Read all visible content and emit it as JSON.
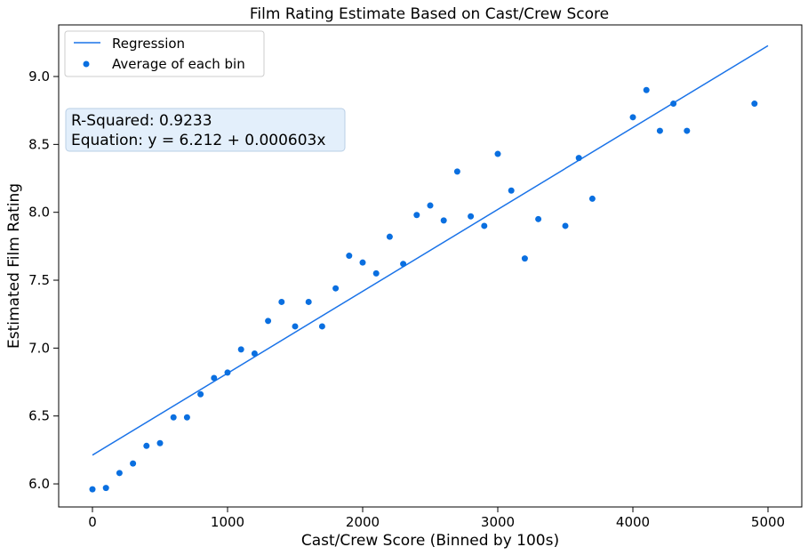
{
  "chart_data": {
    "type": "scatter",
    "title": "Film Rating Estimate Based on Cast/Crew Score",
    "xlabel": "Cast/Crew Score (Binned by 100s)",
    "ylabel": "Estimated Film Rating",
    "xlim": [
      -250,
      5250
    ],
    "ylim": [
      5.83,
      9.38
    ],
    "x_ticks": [
      0,
      1000,
      2000,
      3000,
      4000,
      5000
    ],
    "x_tick_labels": [
      "0",
      "1000",
      "2000",
      "3000",
      "4000",
      "5000"
    ],
    "y_ticks": [
      6.0,
      6.5,
      7.0,
      7.5,
      8.0,
      8.5,
      9.0
    ],
    "y_tick_labels": [
      "6.0",
      "6.5",
      "7.0",
      "7.5",
      "8.0",
      "8.5",
      "9.0"
    ],
    "grid": false,
    "legend_position": "top-left",
    "colors": {
      "series": "#0a6fe0",
      "regression": "#1a73e8",
      "annotation_bg": "#e3effb",
      "annotation_border": "#b9cfe6"
    },
    "series": [
      {
        "name": "Average of each bin",
        "kind": "scatter",
        "x": [
          0,
          100,
          200,
          300,
          400,
          500,
          600,
          700,
          800,
          900,
          1000,
          1100,
          1200,
          1300,
          1400,
          1500,
          1600,
          1700,
          1800,
          1900,
          2000,
          2100,
          2200,
          2300,
          2400,
          2500,
          2600,
          2700,
          2800,
          2900,
          3000,
          3100,
          3200,
          3300,
          3500,
          3600,
          3700,
          4000,
          4100,
          4200,
          4300,
          4400,
          4900
        ],
        "y": [
          5.96,
          5.97,
          6.08,
          6.15,
          6.28,
          6.3,
          6.49,
          6.49,
          6.66,
          6.78,
          6.82,
          6.99,
          6.96,
          7.2,
          7.34,
          7.16,
          7.34,
          7.16,
          7.44,
          7.68,
          7.63,
          7.55,
          7.82,
          7.62,
          7.98,
          8.05,
          7.94,
          8.3,
          7.97,
          7.9,
          8.43,
          8.16,
          7.66,
          7.95,
          7.9,
          8.4,
          8.1,
          8.7,
          8.9,
          8.6,
          8.8,
          8.6,
          8.8
        ]
      },
      {
        "name": "Regression",
        "kind": "line",
        "x": [
          0,
          5000
        ],
        "y": [
          6.212,
          9.227
        ]
      }
    ],
    "annotation": {
      "line1": "R-Squared: 0.9233",
      "line2": "Equation: y = 6.212 + 0.000603x"
    }
  }
}
